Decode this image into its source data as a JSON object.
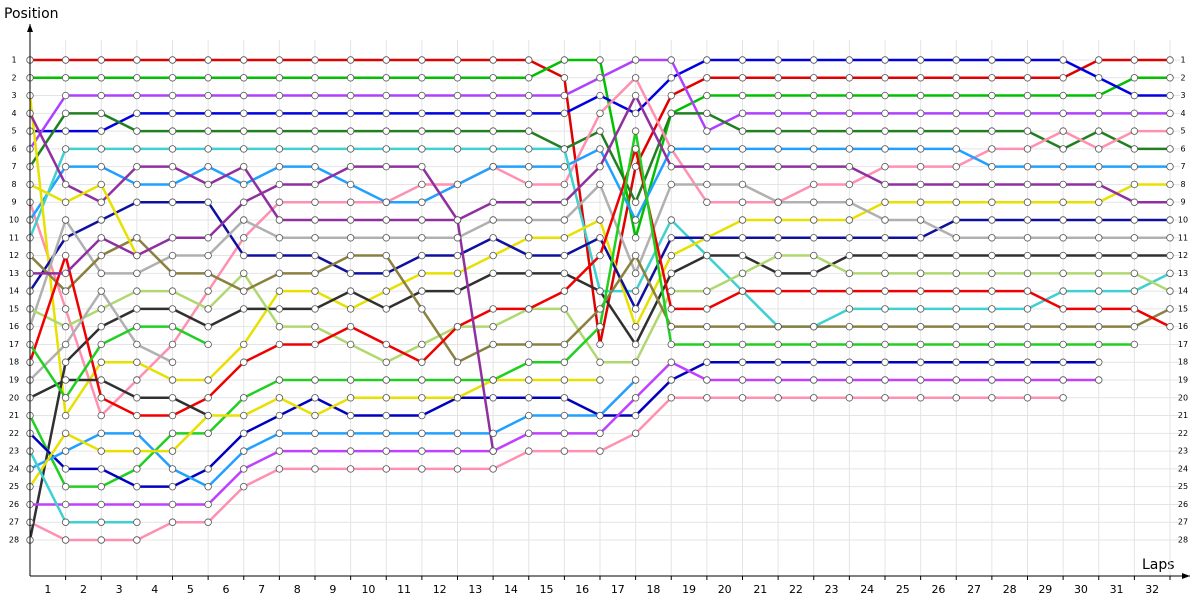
{
  "chart_data": {
    "type": "line",
    "y_label": "Position",
    "x_label": "Laps",
    "x": [
      0,
      1,
      2,
      3,
      4,
      5,
      6,
      7,
      8,
      9,
      10,
      11,
      12,
      13,
      14,
      15,
      16,
      17,
      18,
      19,
      20,
      21,
      22,
      23,
      24,
      25,
      26,
      27,
      28,
      29,
      30,
      31,
      32
    ],
    "xlim": [
      0,
      32
    ],
    "ylim": [
      1,
      28
    ],
    "y_inverted": true,
    "grid": true,
    "xticks": [
      1,
      2,
      3,
      4,
      5,
      6,
      7,
      8,
      9,
      10,
      11,
      12,
      13,
      14,
      15,
      16,
      17,
      18,
      19,
      20,
      21,
      22,
      23,
      24,
      25,
      26,
      27,
      28,
      29,
      30,
      31,
      32
    ],
    "yticks": [
      1,
      2,
      3,
      4,
      5,
      6,
      7,
      8,
      9,
      10,
      11,
      12,
      13,
      14,
      15,
      16,
      17,
      18,
      19,
      20,
      21,
      22,
      23,
      24,
      25,
      26,
      27,
      28
    ],
    "series": [
      {
        "color": "#e00000",
        "values": [
          1,
          1,
          1,
          1,
          1,
          1,
          1,
          1,
          1,
          1,
          1,
          1,
          1,
          1,
          1,
          2,
          17,
          7,
          3,
          2,
          2,
          2,
          2,
          2,
          2,
          2,
          2,
          2,
          2,
          2,
          1,
          1,
          1
        ]
      },
      {
        "color": "#00c000",
        "values": [
          2,
          2,
          2,
          2,
          2,
          2,
          2,
          2,
          2,
          2,
          2,
          2,
          2,
          2,
          2,
          1,
          1,
          11,
          4,
          3,
          3,
          3,
          3,
          3,
          3,
          3,
          3,
          3,
          3,
          3,
          3,
          2,
          2
        ]
      },
      {
        "color": "#0000e0",
        "values": [
          5,
          5,
          5,
          4,
          4,
          4,
          4,
          4,
          4,
          4,
          4,
          4,
          4,
          4,
          4,
          4,
          3,
          4,
          2,
          1,
          1,
          1,
          1,
          1,
          1,
          1,
          1,
          1,
          1,
          1,
          2,
          3,
          3
        ]
      },
      {
        "color": "#b040ff",
        "values": [
          6,
          3,
          3,
          3,
          3,
          3,
          3,
          3,
          3,
          3,
          3,
          3,
          3,
          3,
          3,
          3,
          2,
          1,
          1,
          5,
          4,
          4,
          4,
          4,
          4,
          4,
          4,
          4,
          4,
          4,
          4,
          4,
          4
        ]
      },
      {
        "color": "#208020",
        "values": [
          7,
          4,
          4,
          5,
          5,
          5,
          5,
          5,
          5,
          5,
          5,
          5,
          5,
          5,
          5,
          6,
          5,
          9,
          4,
          4,
          5,
          5,
          5,
          5,
          5,
          5,
          5,
          5,
          5,
          6,
          5,
          6,
          6
        ]
      },
      {
        "color": "#ff90b0",
        "values": [
          9,
          15,
          21,
          19,
          17,
          14,
          11,
          9,
          9,
          9,
          9,
          8,
          8,
          7,
          8,
          8,
          4,
          2,
          6,
          9,
          9,
          9,
          8,
          8,
          7,
          7,
          7,
          6,
          6,
          5,
          6,
          5,
          5
        ]
      },
      {
        "color": "#ff90b0",
        "values": [
          27,
          28,
          28,
          28,
          27,
          27,
          25,
          24,
          24,
          24,
          24,
          24,
          24,
          24,
          23,
          23,
          23,
          22,
          20,
          20,
          20,
          20,
          20,
          20,
          20,
          20,
          20,
          20,
          20,
          20,
          null,
          null,
          null
        ]
      },
      {
        "color": "#20a0ff",
        "values": [
          10,
          7,
          7,
          8,
          8,
          7,
          8,
          7,
          7,
          8,
          9,
          9,
          8,
          7,
          7,
          7,
          6,
          10,
          6,
          6,
          6,
          6,
          6,
          6,
          6,
          6,
          6,
          7,
          7,
          7,
          7,
          7,
          7
        ]
      },
      {
        "color": "#40d0d0",
        "values": [
          11,
          6,
          6,
          6,
          6,
          6,
          6,
          6,
          6,
          6,
          6,
          6,
          6,
          6,
          6,
          6,
          14,
          14,
          10,
          12,
          14,
          16,
          16,
          15,
          15,
          15,
          15,
          15,
          15,
          14,
          14,
          14,
          13
        ]
      },
      {
        "color": "#e8e000",
        "values": [
          3,
          21,
          18,
          18,
          19,
          19,
          17,
          14,
          14,
          15,
          14,
          13,
          13,
          12,
          11,
          11,
          10,
          16,
          12,
          11,
          10,
          10,
          10,
          10,
          9,
          9,
          9,
          9,
          9,
          9,
          9,
          8,
          8
        ]
      },
      {
        "color": "#9030a0",
        "values": [
          4,
          8,
          9,
          7,
          7,
          8,
          7,
          10,
          10,
          10,
          10,
          10,
          10,
          9,
          9,
          9,
          7,
          3,
          7,
          7,
          7,
          7,
          7,
          7,
          8,
          8,
          8,
          8,
          8,
          8,
          8,
          9,
          9
        ]
      },
      {
        "color": "#1010a0",
        "values": [
          14,
          11,
          10,
          9,
          9,
          9,
          12,
          12,
          12,
          13,
          13,
          12,
          12,
          11,
          12,
          12,
          11,
          15,
          11,
          11,
          11,
          11,
          11,
          11,
          11,
          11,
          10,
          10,
          10,
          10,
          10,
          10,
          10
        ]
      },
      {
        "color": "#b0b0b0",
        "values": [
          16,
          10,
          13,
          13,
          12,
          12,
          10,
          11,
          11,
          11,
          11,
          11,
          11,
          10,
          10,
          10,
          8,
          13,
          8,
          8,
          8,
          9,
          9,
          9,
          10,
          10,
          11,
          11,
          11,
          11,
          11,
          11,
          11
        ]
      },
      {
        "color": "#303030",
        "values": [
          28,
          18,
          16,
          15,
          15,
          16,
          15,
          15,
          15,
          14,
          15,
          14,
          14,
          13,
          13,
          13,
          14,
          17,
          13,
          12,
          12,
          13,
          13,
          12,
          12,
          12,
          12,
          12,
          12,
          12,
          12,
          12,
          12
        ]
      },
      {
        "color": "#b0d870",
        "values": [
          15,
          16,
          15,
          14,
          14,
          15,
          13,
          16,
          16,
          17,
          18,
          17,
          16,
          16,
          15,
          15,
          18,
          18,
          14,
          14,
          13,
          12,
          12,
          13,
          13,
          13,
          13,
          13,
          13,
          13,
          13,
          13,
          14
        ]
      },
      {
        "color": "#8a8040",
        "values": [
          12,
          14,
          12,
          11,
          13,
          13,
          14,
          13,
          13,
          12,
          12,
          15,
          18,
          17,
          17,
          17,
          15,
          12,
          16,
          16,
          16,
          16,
          16,
          16,
          16,
          16,
          16,
          16,
          16,
          16,
          16,
          16,
          15
        ]
      },
      {
        "color": "#f00000",
        "values": [
          18,
          12,
          20,
          21,
          21,
          20,
          18,
          17,
          17,
          16,
          17,
          18,
          16,
          15,
          15,
          14,
          12,
          6,
          15,
          15,
          14,
          14,
          14,
          14,
          14,
          14,
          14,
          14,
          14,
          15,
          15,
          15,
          16
        ]
      },
      {
        "color": "#20d020",
        "values": [
          21,
          25,
          25,
          24,
          22,
          22,
          20,
          19,
          19,
          19,
          19,
          19,
          19,
          19,
          18,
          18,
          16,
          5,
          17,
          17,
          17,
          17,
          17,
          17,
          17,
          17,
          17,
          17,
          17,
          17,
          17,
          17,
          null
        ]
      },
      {
        "color": "#0000c0",
        "values": [
          22,
          24,
          24,
          25,
          25,
          24,
          22,
          21,
          20,
          21,
          21,
          21,
          20,
          20,
          20,
          20,
          21,
          21,
          19,
          18,
          18,
          18,
          18,
          18,
          18,
          18,
          18,
          18,
          18,
          18,
          18,
          null,
          null
        ]
      },
      {
        "color": "#c040ff",
        "values": [
          26,
          26,
          26,
          26,
          26,
          26,
          24,
          23,
          23,
          23,
          23,
          23,
          23,
          23,
          22,
          22,
          22,
          20,
          18,
          19,
          19,
          19,
          19,
          19,
          19,
          19,
          19,
          19,
          19,
          19,
          19,
          null,
          null
        ]
      },
      {
        "color": "#20a0ff",
        "values": [
          24,
          23,
          22,
          22,
          24,
          25,
          23,
          22,
          22,
          22,
          22,
          22,
          22,
          22,
          21,
          21,
          21,
          19,
          null,
          null,
          null,
          null,
          null,
          null,
          null,
          null,
          null,
          null,
          null,
          null,
          null,
          null,
          null
        ]
      },
      {
        "color": "#e8e000",
        "values": [
          25,
          22,
          23,
          23,
          23,
          21,
          21,
          20,
          21,
          20,
          20,
          20,
          20,
          19,
          19,
          19,
          19,
          null,
          null,
          null,
          null,
          null,
          null,
          null,
          null,
          null,
          null,
          null,
          null,
          null,
          null,
          null,
          null
        ]
      },
      {
        "color": "#40d0d0",
        "values": [
          23,
          27,
          27,
          27,
          null,
          null,
          null,
          null,
          null,
          null,
          null,
          null,
          null,
          null,
          null,
          null,
          null,
          null,
          null,
          null,
          null,
          null,
          null,
          null,
          null,
          null,
          null,
          null,
          null,
          null,
          null,
          null,
          null
        ]
      },
      {
        "color": "#303030",
        "values": [
          20,
          19,
          19,
          20,
          20,
          21,
          null,
          null,
          null,
          null,
          null,
          null,
          null,
          null,
          null,
          null,
          null,
          null,
          null,
          null,
          null,
          null,
          null,
          null,
          null,
          null,
          null,
          null,
          null,
          null,
          null,
          null,
          null
        ]
      },
      {
        "color": "#b0b0b0",
        "values": [
          19,
          17,
          14,
          17,
          18,
          null,
          null,
          null,
          null,
          null,
          null,
          null,
          null,
          null,
          null,
          null,
          null,
          null,
          null,
          null,
          null,
          null,
          null,
          null,
          null,
          null,
          null,
          null,
          null,
          null,
          null,
          null,
          null
        ]
      },
      {
        "color": "#9030a0",
        "values": [
          13,
          13,
          11,
          12,
          11,
          11,
          9,
          8,
          8,
          7,
          7,
          7,
          10,
          23,
          null,
          null,
          null,
          null,
          null,
          null,
          null,
          null,
          null,
          null,
          null,
          null,
          null,
          null,
          null,
          null,
          null,
          null,
          null
        ]
      },
      {
        "color": "#e8e000",
        "values": [
          8,
          9,
          8,
          12,
          null,
          null,
          null,
          null,
          null,
          null,
          null,
          null,
          null,
          null,
          null,
          null,
          null,
          null,
          null,
          null,
          null,
          null,
          null,
          null,
          null,
          null,
          null,
          null,
          null,
          null,
          null,
          null,
          null
        ]
      },
      {
        "color": "#20d020",
        "values": [
          17,
          20,
          17,
          16,
          16,
          17,
          null,
          null,
          null,
          null,
          null,
          null,
          null,
          null,
          null,
          null,
          null,
          null,
          null,
          null,
          null,
          null,
          null,
          null,
          null,
          null,
          null,
          null,
          null,
          null,
          null,
          null,
          null
        ]
      }
    ]
  }
}
